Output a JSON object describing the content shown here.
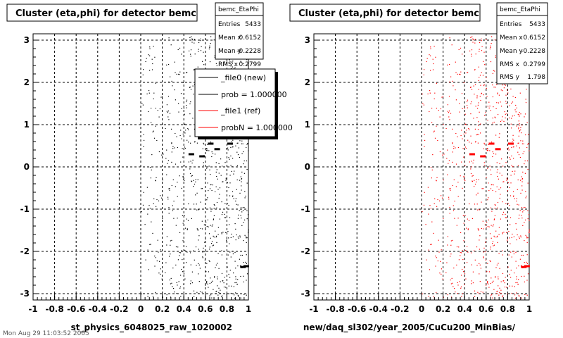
{
  "chart_data": [
    {
      "type": "scatter",
      "title": "Cluster (eta,phi) for detector bemc",
      "xlabel": "st_physics_6048025_raw_1020002",
      "ylabel": "",
      "xlim": [
        -1,
        1
      ],
      "ylim": [
        -3.15,
        3.15
      ],
      "x_ticks": [
        "-1",
        "-0.8",
        "-0.6",
        "-0.4",
        "-0.2",
        "0",
        "0.2",
        "0.4",
        "0.6",
        "0.8",
        "1"
      ],
      "y_ticks": [
        "3",
        "2",
        "1",
        "0",
        "-1",
        "-2",
        "-3"
      ],
      "grid": true,
      "marker_color": "#000000",
      "stats": {
        "name": "bemc_EtaPhi",
        "rows": [
          {
            "label": "Entries",
            "value": "5433"
          },
          {
            "label": "Mean x",
            "value": "0.6152"
          },
          {
            "label": "Mean y",
            "value": "-0.2228"
          },
          {
            "label": "RMS x",
            "value": "0.2799"
          }
        ]
      },
      "legend": {
        "placement": "top-right",
        "entries": [
          {
            "label": "_file0 (new)",
            "color": "#000000"
          },
          {
            "label": "prob = 1.000000",
            "color": "#000000"
          },
          {
            "label": "_file1 (ref)",
            "color": "#ff0000"
          },
          {
            "label": "probN = 1.000000",
            "color": "#ff0000"
          }
        ]
      },
      "density_bands": [
        {
          "x_range": [
            0.0,
            0.2
          ],
          "density": 0.35
        },
        {
          "x_range": [
            0.2,
            0.4
          ],
          "density": 0.5
        },
        {
          "x_range": [
            0.4,
            0.6
          ],
          "density": 0.7
        },
        {
          "x_range": [
            0.6,
            0.8
          ],
          "density": 0.85
        },
        {
          "x_range": [
            0.8,
            1.0
          ],
          "density": 1.0
        }
      ],
      "hot_spots": [
        {
          "x": 0.47,
          "y": 0.3
        },
        {
          "x": 0.57,
          "y": 0.25
        },
        {
          "x": 0.65,
          "y": 0.55
        },
        {
          "x": 0.71,
          "y": 0.42
        },
        {
          "x": 0.83,
          "y": 0.55
        },
        {
          "x": 0.95,
          "y": -2.37
        },
        {
          "x": 0.98,
          "y": -2.35
        }
      ]
    },
    {
      "type": "scatter",
      "title": "Cluster (eta,phi) for detector bemc",
      "xlabel": "new/daq_sl302/year_2005/CuCu200_MinBias/",
      "ylabel": "",
      "xlim": [
        -1,
        1
      ],
      "ylim": [
        -3.15,
        3.15
      ],
      "x_ticks": [
        "-1",
        "-0.8",
        "-0.6",
        "-0.4",
        "-0.2",
        "0",
        "0.2",
        "0.4",
        "0.6",
        "0.8",
        "1"
      ],
      "y_ticks": [
        "3",
        "2",
        "1",
        "0",
        "-1",
        "-2",
        "-3"
      ],
      "grid": true,
      "marker_color": "#ff0000",
      "stats": {
        "name": "bemc_EtaPhi",
        "rows": [
          {
            "label": "Entries",
            "value": "5433"
          },
          {
            "label": "Mean x",
            "value": "0.6152"
          },
          {
            "label": "Mean y",
            "value": "-0.2228"
          },
          {
            "label": "RMS x",
            "value": "0.2799"
          },
          {
            "label": "RMS y",
            "value": "1.798"
          }
        ]
      },
      "density_bands": [
        {
          "x_range": [
            0.0,
            0.2
          ],
          "density": 0.35
        },
        {
          "x_range": [
            0.2,
            0.4
          ],
          "density": 0.5
        },
        {
          "x_range": [
            0.4,
            0.6
          ],
          "density": 0.7
        },
        {
          "x_range": [
            0.6,
            0.8
          ],
          "density": 0.85
        },
        {
          "x_range": [
            0.8,
            1.0
          ],
          "density": 1.0
        }
      ],
      "hot_spots": [
        {
          "x": 0.47,
          "y": 0.3
        },
        {
          "x": 0.57,
          "y": 0.25
        },
        {
          "x": 0.65,
          "y": 0.55
        },
        {
          "x": 0.71,
          "y": 0.42
        },
        {
          "x": 0.83,
          "y": 0.55
        },
        {
          "x": 0.95,
          "y": -2.37
        },
        {
          "x": 0.98,
          "y": -2.35
        }
      ]
    }
  ],
  "footer": {
    "left_text": "Mon Aug 29 11:03:52 2005"
  }
}
